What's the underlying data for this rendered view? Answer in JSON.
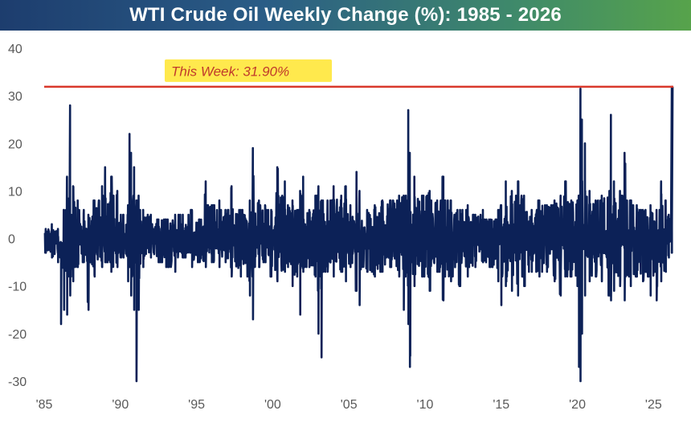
{
  "header": {
    "title": "WTI Crude Oil Weekly Change (%): 1985 - 2026"
  },
  "colors": {
    "series": "#0c2157",
    "reference_line": "#d9382b",
    "annotation_bg": "#ffe94d",
    "annotation_text": "#c0392b"
  },
  "chart_data": {
    "type": "line",
    "title": "WTI Crude Oil Weekly Change (%): 1985 - 2026",
    "xlabel": "",
    "ylabel": "",
    "xlim": [
      1985.0,
      2026.3
    ],
    "ylim": [
      -30,
      40
    ],
    "yticks": [
      40,
      30,
      20,
      10,
      0,
      -10,
      -20,
      -30
    ],
    "xtick_values": [
      1985,
      1990,
      1995,
      2000,
      2005,
      2010,
      2015,
      2020,
      2025
    ],
    "xtick_labels": [
      "'85",
      "'90",
      "'95",
      "'00",
      "'05",
      "'10",
      "'15",
      "'20",
      "'25"
    ],
    "grid": false,
    "legend": "none",
    "reference_line": {
      "y": 31.9,
      "label": "This Week: 31.90%"
    },
    "series": [
      {
        "values_approx": "envelope of weekly changes, as [year, high, low]",
        "envelope": [
          [
            1985.1,
            2,
            -3
          ],
          [
            1985.5,
            3,
            -4
          ],
          [
            1985.9,
            2,
            -5
          ],
          [
            1986.1,
            -4,
            -18
          ],
          [
            1986.3,
            6,
            -15
          ],
          [
            1986.5,
            13,
            -16
          ],
          [
            1986.7,
            28,
            -12
          ],
          [
            1986.9,
            11,
            -9
          ],
          [
            1987.2,
            8,
            -6
          ],
          [
            1987.6,
            6,
            -5
          ],
          [
            1987.9,
            5,
            -15
          ],
          [
            1988.3,
            8,
            -8
          ],
          [
            1988.8,
            11,
            -6
          ],
          [
            1989.0,
            15,
            -5
          ],
          [
            1989.4,
            13,
            -7
          ],
          [
            1989.8,
            10,
            -6
          ],
          [
            1990.2,
            5,
            -4
          ],
          [
            1990.5,
            7,
            -9
          ],
          [
            1990.6,
            22,
            -6
          ],
          [
            1990.7,
            18,
            -12
          ],
          [
            1990.9,
            15,
            -15
          ],
          [
            1991.05,
            8,
            -30
          ],
          [
            1991.2,
            9,
            -15
          ],
          [
            1991.5,
            6,
            -6
          ],
          [
            1992.0,
            5,
            -4
          ],
          [
            1992.5,
            4,
            -5
          ],
          [
            1993.0,
            4,
            -6
          ],
          [
            1993.6,
            5,
            -7
          ],
          [
            1994.1,
            5,
            -4
          ],
          [
            1994.7,
            6,
            -6
          ],
          [
            1995.2,
            4,
            -5
          ],
          [
            1995.6,
            12,
            -6
          ],
          [
            1996.0,
            7,
            -5
          ],
          [
            1996.5,
            8,
            -6
          ],
          [
            1996.9,
            6,
            -5
          ],
          [
            1997.3,
            11,
            -8
          ],
          [
            1997.9,
            6,
            -8
          ],
          [
            1998.5,
            8,
            -12
          ],
          [
            1998.7,
            19,
            -17
          ],
          [
            1999.1,
            8,
            -6
          ],
          [
            1999.5,
            7,
            -5
          ],
          [
            1999.9,
            6,
            -8
          ],
          [
            2000.3,
            15,
            -9
          ],
          [
            2000.8,
            12,
            -7
          ],
          [
            2001.0,
            7,
            -6
          ],
          [
            2001.3,
            8,
            -10
          ],
          [
            2001.6,
            6,
            -8
          ],
          [
            2001.8,
            10,
            -16
          ],
          [
            2002.0,
            13,
            -7
          ],
          [
            2002.4,
            6,
            -6
          ],
          [
            2002.8,
            9,
            -8
          ],
          [
            2003.0,
            11,
            -20
          ],
          [
            2003.2,
            8,
            -25
          ],
          [
            2003.6,
            8,
            -7
          ],
          [
            2004.0,
            11,
            -8
          ],
          [
            2004.5,
            9,
            -7
          ],
          [
            2004.8,
            11,
            -9
          ],
          [
            2005.1,
            7,
            -6
          ],
          [
            2005.5,
            14,
            -11
          ],
          [
            2005.7,
            10,
            -14
          ],
          [
            2006.2,
            6,
            -7
          ],
          [
            2006.7,
            7,
            -8
          ],
          [
            2007.2,
            8,
            -7
          ],
          [
            2007.7,
            8,
            -6
          ],
          [
            2008.3,
            9,
            -8
          ],
          [
            2008.6,
            9,
            -15
          ],
          [
            2008.9,
            27,
            -18
          ],
          [
            2009.0,
            18,
            -27
          ],
          [
            2009.3,
            13,
            -10
          ],
          [
            2009.8,
            9,
            -8
          ],
          [
            2010.3,
            10,
            -11
          ],
          [
            2010.8,
            8,
            -7
          ],
          [
            2011.2,
            13,
            -13
          ],
          [
            2011.7,
            8,
            -9
          ],
          [
            2012.3,
            6,
            -10
          ],
          [
            2012.8,
            7,
            -8
          ],
          [
            2013.3,
            5,
            -6
          ],
          [
            2013.8,
            6,
            -5
          ],
          [
            2014.3,
            4,
            -6
          ],
          [
            2014.8,
            6,
            -9
          ],
          [
            2015.0,
            7,
            -14
          ],
          [
            2015.3,
            12,
            -10
          ],
          [
            2015.7,
            10,
            -11
          ],
          [
            2016.1,
            12,
            -12
          ],
          [
            2016.5,
            9,
            -10
          ],
          [
            2017.0,
            6,
            -7
          ],
          [
            2017.5,
            8,
            -8
          ],
          [
            2018.0,
            7,
            -7
          ],
          [
            2018.5,
            8,
            -9
          ],
          [
            2018.9,
            9,
            -12
          ],
          [
            2019.2,
            12,
            -8
          ],
          [
            2019.6,
            8,
            -8
          ],
          [
            2020.0,
            8,
            -10
          ],
          [
            2020.1,
            9,
            -27
          ],
          [
            2020.2,
            31.5,
            -30
          ],
          [
            2020.3,
            25,
            -20
          ],
          [
            2020.5,
            20,
            -12
          ],
          [
            2020.8,
            10,
            -9
          ],
          [
            2021.2,
            8,
            -8
          ],
          [
            2021.6,
            9,
            -9
          ],
          [
            2022.1,
            10,
            -12
          ],
          [
            2022.2,
            26,
            -13
          ],
          [
            2022.4,
            12,
            -11
          ],
          [
            2022.8,
            10,
            -10
          ],
          [
            2023.1,
            18,
            -13
          ],
          [
            2023.5,
            8,
            -10
          ],
          [
            2023.9,
            7,
            -8
          ],
          [
            2024.3,
            6,
            -9
          ],
          [
            2024.8,
            7,
            -12
          ],
          [
            2025.2,
            6,
            -13
          ],
          [
            2025.5,
            12,
            -9
          ],
          [
            2025.8,
            8,
            -7
          ],
          [
            2026.0,
            5,
            -4
          ],
          [
            2026.2,
            31.9,
            -3
          ]
        ]
      }
    ]
  }
}
